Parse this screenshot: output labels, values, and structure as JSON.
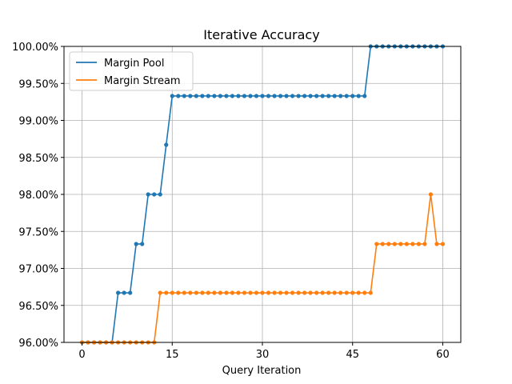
{
  "chart_data": {
    "type": "line",
    "title": "Iterative Accuracy",
    "xlabel": "Query Iteration",
    "ylabel": "",
    "xlim": [
      -3,
      63
    ],
    "ylim": [
      0.96,
      1.0
    ],
    "xticks": [
      0,
      15,
      30,
      45,
      60
    ],
    "yticks": [
      0.96,
      0.965,
      0.97,
      0.975,
      0.98,
      0.985,
      0.99,
      0.995,
      1.0
    ],
    "ytick_labels": [
      "96.00%",
      "96.50%",
      "97.00%",
      "97.50%",
      "98.00%",
      "98.50%",
      "99.00%",
      "99.50%",
      "100.00%"
    ],
    "grid": true,
    "legend_position": "top-left",
    "series": [
      {
        "name": "Margin Pool",
        "color": "#1f77b4",
        "x": [
          0,
          1,
          2,
          3,
          4,
          5,
          6,
          7,
          8,
          9,
          10,
          11,
          12,
          13,
          14,
          15,
          16,
          17,
          18,
          19,
          20,
          21,
          22,
          23,
          24,
          25,
          26,
          27,
          28,
          29,
          30,
          31,
          32,
          33,
          34,
          35,
          36,
          37,
          38,
          39,
          40,
          41,
          42,
          43,
          44,
          45,
          46,
          47,
          48,
          49,
          50,
          51,
          52,
          53,
          54,
          55,
          56,
          57,
          58,
          59,
          60
        ],
        "values": [
          0.96,
          0.96,
          0.96,
          0.96,
          0.96,
          0.96,
          0.9667,
          0.9667,
          0.9667,
          0.9733,
          0.9733,
          0.98,
          0.98,
          0.98,
          0.9867,
          0.9933,
          0.9933,
          0.9933,
          0.9933,
          0.9933,
          0.9933,
          0.9933,
          0.9933,
          0.9933,
          0.9933,
          0.9933,
          0.9933,
          0.9933,
          0.9933,
          0.9933,
          0.9933,
          0.9933,
          0.9933,
          0.9933,
          0.9933,
          0.9933,
          0.9933,
          0.9933,
          0.9933,
          0.9933,
          0.9933,
          0.9933,
          0.9933,
          0.9933,
          0.9933,
          0.9933,
          0.9933,
          0.9933,
          1.0,
          1.0,
          1.0,
          1.0,
          1.0,
          1.0,
          1.0,
          1.0,
          1.0,
          1.0,
          1.0,
          1.0,
          1.0
        ]
      },
      {
        "name": "Margin Stream",
        "color": "#ff7f0e",
        "x": [
          0,
          1,
          2,
          3,
          4,
          5,
          6,
          7,
          8,
          9,
          10,
          11,
          12,
          13,
          14,
          15,
          16,
          17,
          18,
          19,
          20,
          21,
          22,
          23,
          24,
          25,
          26,
          27,
          28,
          29,
          30,
          31,
          32,
          33,
          34,
          35,
          36,
          37,
          38,
          39,
          40,
          41,
          42,
          43,
          44,
          45,
          46,
          47,
          48,
          49,
          50,
          51,
          52,
          53,
          54,
          55,
          56,
          57,
          58,
          59,
          60
        ],
        "values": [
          0.96,
          0.96,
          0.96,
          0.96,
          0.96,
          0.96,
          0.96,
          0.96,
          0.96,
          0.96,
          0.96,
          0.96,
          0.96,
          0.9667,
          0.9667,
          0.9667,
          0.9667,
          0.9667,
          0.9667,
          0.9667,
          0.9667,
          0.9667,
          0.9667,
          0.9667,
          0.9667,
          0.9667,
          0.9667,
          0.9667,
          0.9667,
          0.9667,
          0.9667,
          0.9667,
          0.9667,
          0.9667,
          0.9667,
          0.9667,
          0.9667,
          0.9667,
          0.9667,
          0.9667,
          0.9667,
          0.9667,
          0.9667,
          0.9667,
          0.9667,
          0.9667,
          0.9667,
          0.9667,
          0.9667,
          0.9733,
          0.9733,
          0.9733,
          0.9733,
          0.9733,
          0.9733,
          0.9733,
          0.9733,
          0.9733,
          0.98,
          0.9733,
          0.9733
        ]
      }
    ]
  }
}
